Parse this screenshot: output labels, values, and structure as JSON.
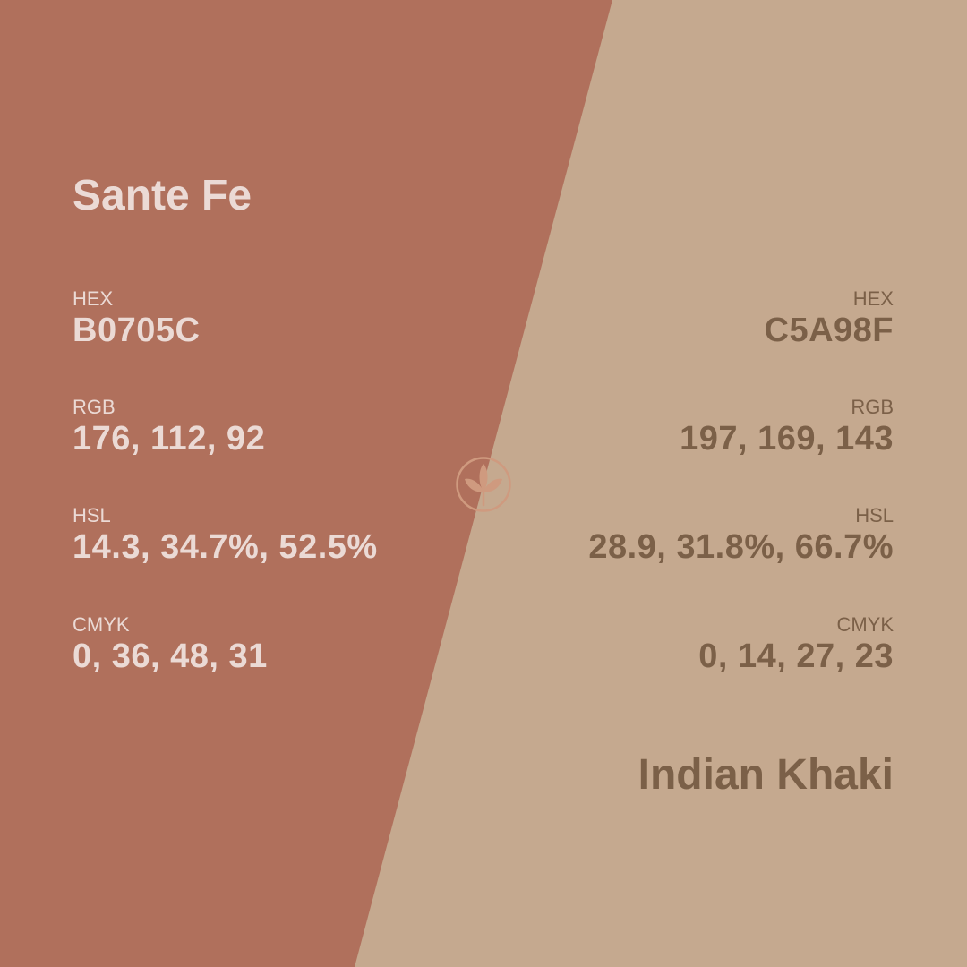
{
  "colors": {
    "left_bg": "#B0705C",
    "right_bg": "#C5A98F",
    "left_text": "#EBDAD5",
    "right_text": "#7B6048"
  },
  "left": {
    "name": "Sante Fe",
    "hex_label": "HEX",
    "hex": "B0705C",
    "rgb_label": "RGB",
    "rgb": "176, 112, 92",
    "hsl_label": "HSL",
    "hsl": "14.3, 34.7%, 52.5%",
    "cmyk_label": "CMYK",
    "cmyk": "0, 36, 48, 31"
  },
  "right": {
    "name": "Indian Khaki",
    "hex_label": "HEX",
    "hex": "C5A98F",
    "rgb_label": "RGB",
    "rgb": "197, 169, 143",
    "hsl_label": "HSL",
    "hsl": "28.9, 31.8%, 66.7%",
    "cmyk_label": "CMYK",
    "cmyk": "0, 14, 27, 23"
  },
  "logo_icon": "leaf-logo-icon"
}
